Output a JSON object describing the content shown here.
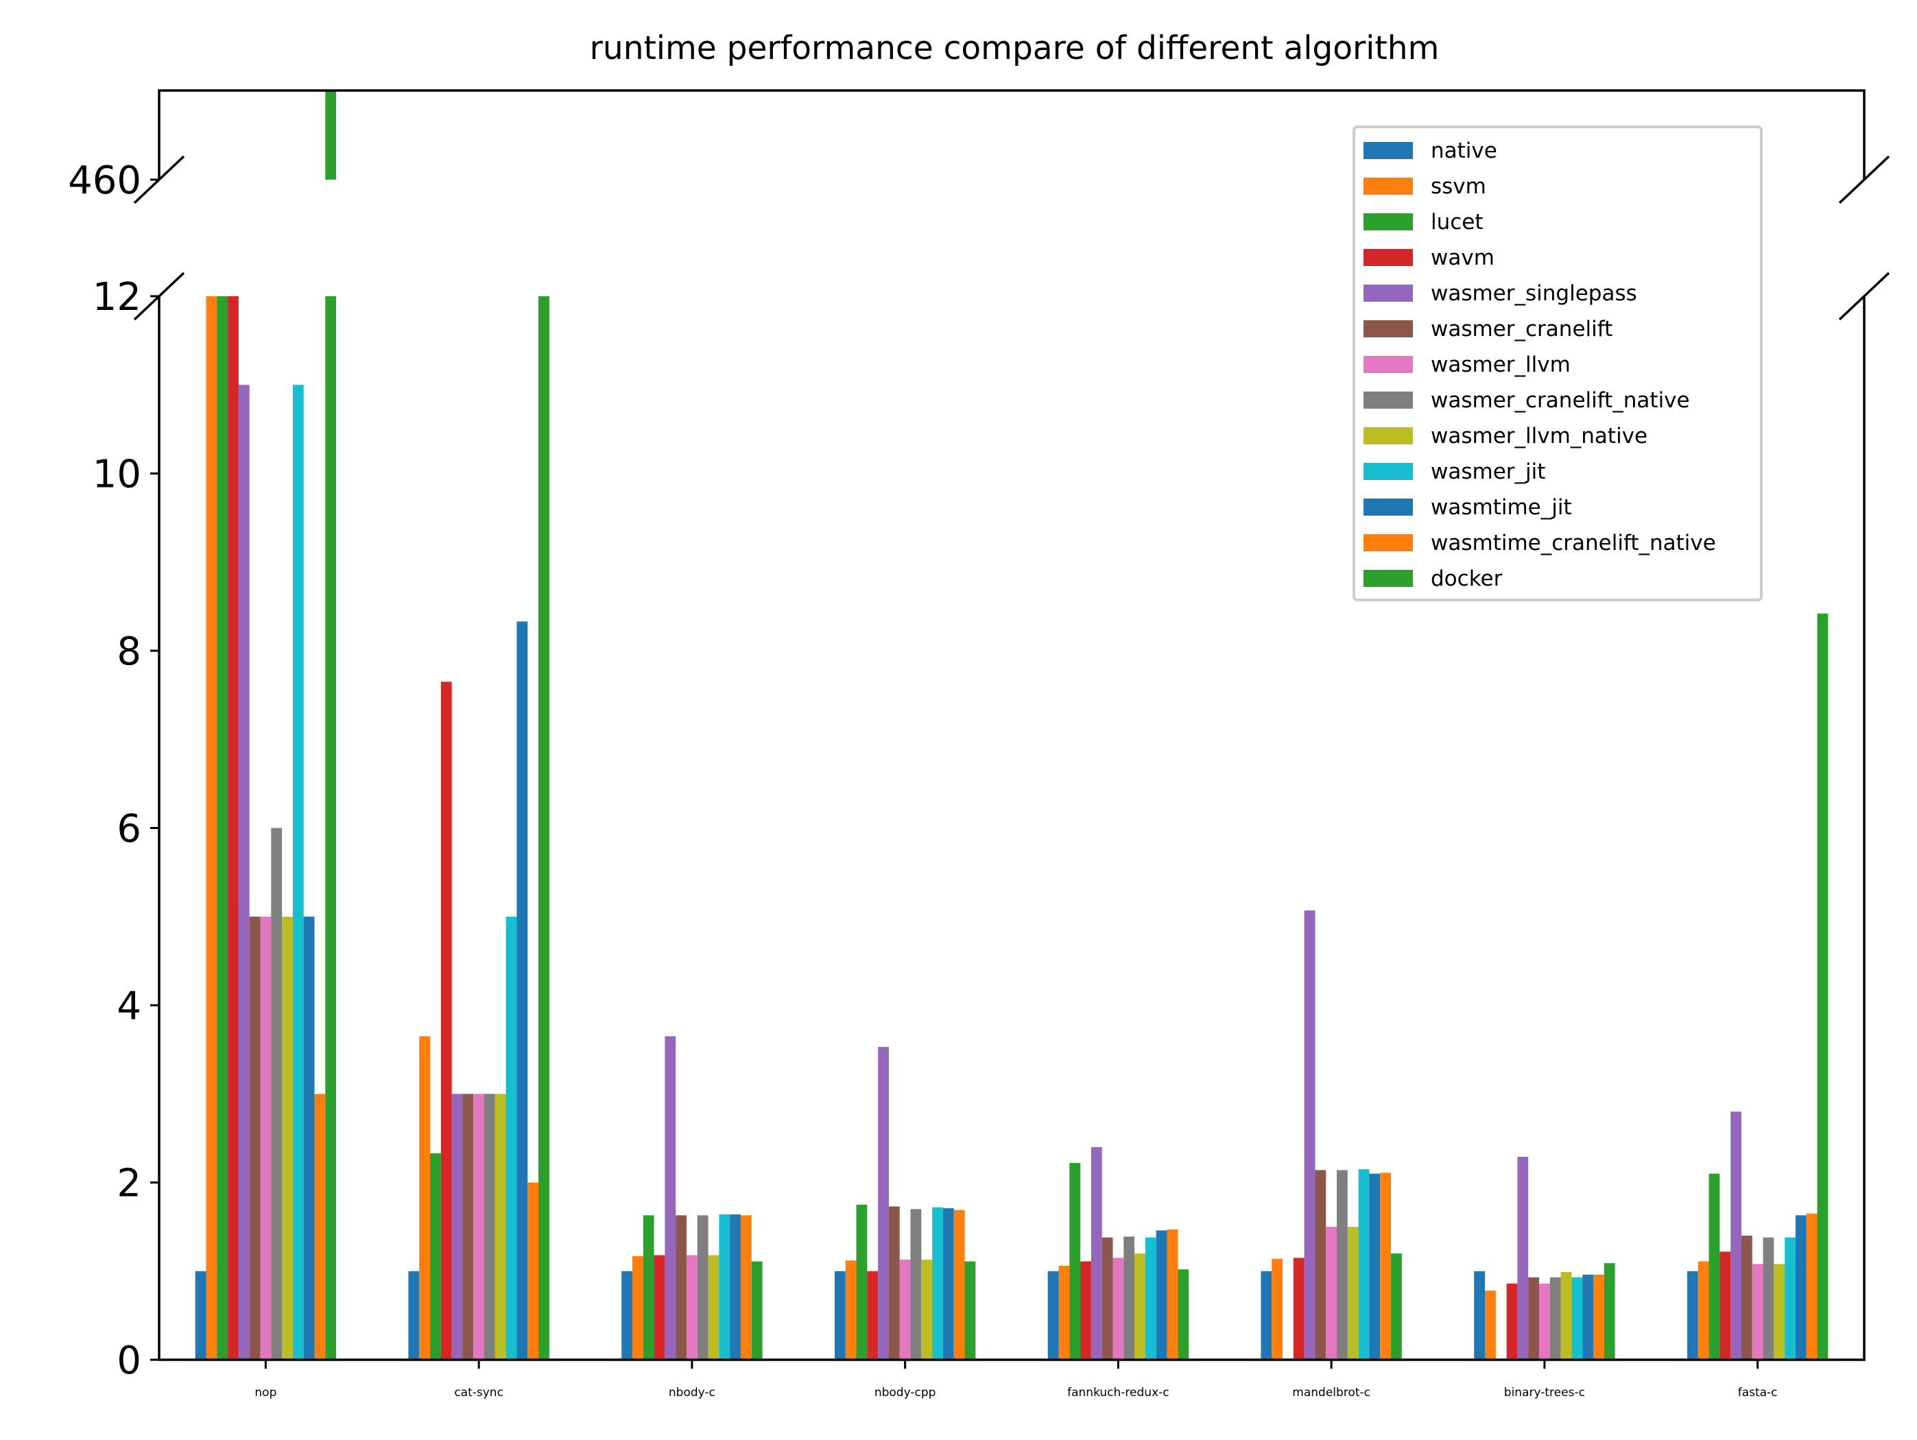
{
  "chart_data": {
    "type": "bar",
    "title": "runtime performance compare of different algorithm",
    "xlabel": "",
    "ylabel": "",
    "broken_axis": true,
    "ylim_lower": [
      0,
      12
    ],
    "ylim_upper_tick": 460,
    "yticks_lower": [
      0,
      2,
      4,
      6,
      8,
      10,
      12
    ],
    "legend_position": "top-right",
    "categories": [
      "nop",
      "cat-sync",
      "nbody-c",
      "nbody-cpp",
      "fannkuch-redux-c",
      "mandelbrot-c",
      "binary-trees-c",
      "fasta-c"
    ],
    "series": [
      {
        "name": "native",
        "color": "#1f77b4",
        "values": [
          1,
          1,
          1,
          1,
          1,
          1,
          1,
          1
        ]
      },
      {
        "name": "ssvm",
        "color": "#ff7f0e",
        "values": [
          12,
          3.65,
          1.17,
          1.12,
          1.06,
          1.14,
          0.78,
          1.11
        ]
      },
      {
        "name": "lucet",
        "color": "#2ca02c",
        "values": [
          12,
          2.33,
          1.63,
          1.75,
          2.22,
          0,
          0,
          2.1
        ]
      },
      {
        "name": "wavm",
        "color": "#d62728",
        "values": [
          12,
          7.65,
          1.18,
          1.0,
          1.11,
          1.15,
          0.86,
          1.22
        ]
      },
      {
        "name": "wasmer_singlepass",
        "color": "#9467bd",
        "values": [
          11,
          3.0,
          3.65,
          3.53,
          2.4,
          5.07,
          2.29,
          2.8
        ]
      },
      {
        "name": "wasmer_cranelift",
        "color": "#8c564b",
        "values": [
          5,
          3.0,
          1.63,
          1.73,
          1.38,
          2.14,
          0.93,
          1.4
        ]
      },
      {
        "name": "wasmer_llvm",
        "color": "#e377c2",
        "values": [
          5,
          3.0,
          1.18,
          1.13,
          1.15,
          1.5,
          0.86,
          1.08
        ]
      },
      {
        "name": "wasmer_cranelift_native",
        "color": "#7f7f7f",
        "values": [
          6,
          3.0,
          1.63,
          1.7,
          1.39,
          2.14,
          0.93,
          1.38
        ]
      },
      {
        "name": "wasmer_llvm_native",
        "color": "#bcbd22",
        "values": [
          5,
          3.0,
          1.18,
          1.13,
          1.2,
          1.5,
          0.99,
          1.08
        ]
      },
      {
        "name": "wasmer_jit",
        "color": "#17becf",
        "values": [
          11,
          5.0,
          1.64,
          1.72,
          1.38,
          2.15,
          0.93,
          1.38
        ]
      },
      {
        "name": "wasmtime_jit",
        "color": "#1f77b4",
        "values": [
          5,
          8.33,
          1.64,
          1.71,
          1.46,
          2.1,
          0.96,
          1.63
        ]
      },
      {
        "name": "wasmtime_cranelift_native",
        "color": "#ff7f0e",
        "values": [
          3,
          2.0,
          1.63,
          1.69,
          1.47,
          2.11,
          0.96,
          1.65
        ]
      },
      {
        "name": "docker",
        "color": "#2ca02c",
        "values": [
          470,
          12,
          1.11,
          1.11,
          1.02,
          1.2,
          1.09,
          8.42
        ]
      }
    ]
  }
}
